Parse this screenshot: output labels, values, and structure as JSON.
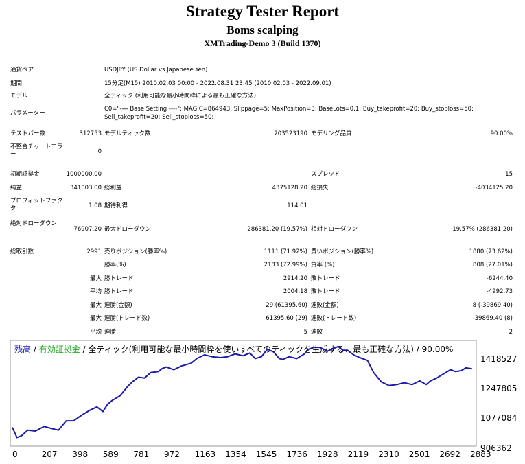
{
  "report": {
    "title": "Strategy Tester Report",
    "ea_name": "Boms scalping",
    "server": "XMTrading-Demo 3 (Build 1370)"
  },
  "info": {
    "symbol_label": "通貨ペア",
    "symbol_value": "USDJPY (US Dollar vs Japanese Yen)",
    "period_label": "期間",
    "period_value": "15分足(M15) 2010.02.03 00:00 - 2022.08.31 23:45 (2010.02.03 - 2022.09.01)",
    "model_label": "モデル",
    "model_value": "全ティック (利用可能な最小時間枠による最も正確な方法)",
    "params_label": "パラメーター",
    "params_value_line1": "C0=\"---- Base Setting ----\"; MAGIC=864943; Slippage=5; MaxPosition=3; BaseLots=0.1; Buy_takeprofit=20; Buy_stoploss=50;",
    "params_value_line2": "Sell_takeprofit=20; Sell_stoploss=50;"
  },
  "stats": {
    "bars_label": "テストバー数",
    "bars_value": "312753",
    "ticks_label": "モデルティック数",
    "ticks_value": "203523190",
    "quality_label": "モデリング品質",
    "quality_value": "90.00%",
    "mismatch_label": "不整合チャートエラー",
    "mismatch_value": "0",
    "deposit_label": "初期証拠金",
    "deposit_value": "1000000.00",
    "spread_label": "スプレッド",
    "spread_value": "15",
    "netprofit_label": "純益",
    "netprofit_value": "341003.00",
    "grossprofit_label": "総利益",
    "grossprofit_value": "4375128.20",
    "grossloss_label": "総損失",
    "grossloss_value": "-4034125.20",
    "pf_label": "プロフィットファクタ",
    "pf_value": "1.08",
    "payoff_label": "期待利得",
    "payoff_value": "114.01",
    "absdd_label": "絶対ドローダウン",
    "absdd_value": "76907.20",
    "maxdd_label": "最大ドローダウン",
    "maxdd_value": "286381.20 (19.57%)",
    "reldd_label": "相対ドローダウン",
    "reldd_value": "19.57% (286381.20)",
    "trades_label": "総取引数",
    "trades_value": "2991",
    "short_label": "売りポジション(勝率%)",
    "short_value": "1111 (71.92%)",
    "long_label": "買いポジション(勝率%)",
    "long_value": "1880 (73.62%)",
    "win_label": "勝率(%)",
    "win_value": "2183 (72.99%)",
    "loss_label": "負率 (%)",
    "loss_value": "808 (27.01%)",
    "max1_prefix": "最大",
    "maxwin_label": "勝トレード",
    "maxwin_value": "2914.20",
    "maxloss_label": "敗トレード",
    "maxloss_value": "-6244.40",
    "avg1_prefix": "平均",
    "avgwin_label": "勝トレード",
    "avgwin_value": "2004.18",
    "avgloss_label": "敗トレード",
    "avgloss_value": "-4992.73",
    "max2_prefix": "最大",
    "consecwin_amt_label": "連勝(金額)",
    "consecwin_amt_value": "29 (61395.60)",
    "consecloss_amt_label": "連敗(金額)",
    "consecloss_amt_value": "8 (-39869.40)",
    "max3_prefix": "最大",
    "consecwin_cnt_label": "連勝(トレード数)",
    "consecwin_cnt_value": "61395.60 (29)",
    "consecloss_cnt_label": "連敗(トレード数)",
    "consecloss_cnt_value": "-39869.40 (8)",
    "avg2_prefix": "平均",
    "avgconsecwin_label": "連勝",
    "avgconsecwin_value": "5",
    "avgconsecloss_label": "連敗",
    "avgconsecloss_value": "2"
  },
  "colors": {
    "balance": "#1a1aa8",
    "equity": "#22aa22",
    "frame": "#9a9a9a"
  },
  "chart_data": {
    "type": "line",
    "legend": {
      "balance": "残高",
      "sep1": " / ",
      "equity": "有効証拠金",
      "rest": " / 全ティック(利用可能な最小時間枠を使いすべてのティックを生成する、最も正確な方法) / 90.00%"
    },
    "x_ticks": [
      "0",
      "207",
      "398",
      "589",
      "781",
      "972",
      "1163",
      "1354",
      "1545",
      "1736",
      "1928",
      "2119",
      "2310",
      "2501",
      "2692",
      "2883"
    ],
    "y_ticks": [
      "1418527",
      "1247805",
      "1077084",
      "906362"
    ],
    "xlim": [
      0,
      3000
    ],
    "ylim": [
      906362,
      1460000
    ],
    "series": [
      {
        "name": "残高",
        "x": [
          0,
          30,
          60,
          100,
          150,
          207,
          250,
          300,
          350,
          398,
          450,
          500,
          550,
          589,
          620,
          650,
          700,
          750,
          781,
          820,
          860,
          900,
          950,
          972,
          1000,
          1050,
          1100,
          1163,
          1200,
          1250,
          1300,
          1354,
          1400,
          1450,
          1500,
          1545,
          1580,
          1620,
          1660,
          1700,
          1736,
          1760,
          1800,
          1850,
          1900,
          1928,
          1960,
          2000,
          2050,
          2119,
          2150,
          2180,
          2220,
          2260,
          2310,
          2350,
          2400,
          2450,
          2501,
          2550,
          2600,
          2650,
          2692,
          2720,
          2760,
          2800,
          2850,
          2883,
          2920,
          2950,
          2990
        ],
        "y": [
          1000000,
          945000,
          955000,
          985000,
          980000,
          1005000,
          995000,
          985000,
          1035000,
          1035000,
          1065000,
          1090000,
          1110000,
          1085000,
          1125000,
          1145000,
          1170000,
          1220000,
          1245000,
          1270000,
          1265000,
          1295000,
          1300000,
          1315000,
          1325000,
          1310000,
          1330000,
          1345000,
          1370000,
          1390000,
          1380000,
          1375000,
          1380000,
          1395000,
          1385000,
          1400000,
          1370000,
          1380000,
          1420000,
          1405000,
          1370000,
          1365000,
          1380000,
          1370000,
          1395000,
          1420000,
          1430000,
          1430000,
          1410000,
          1435000,
          1415000,
          1415000,
          1390000,
          1375000,
          1360000,
          1295000,
          1245000,
          1225000,
          1230000,
          1240000,
          1230000,
          1250000,
          1230000,
          1250000,
          1265000,
          1285000,
          1310000,
          1300000,
          1305000,
          1320000,
          1315000
        ]
      }
    ]
  }
}
